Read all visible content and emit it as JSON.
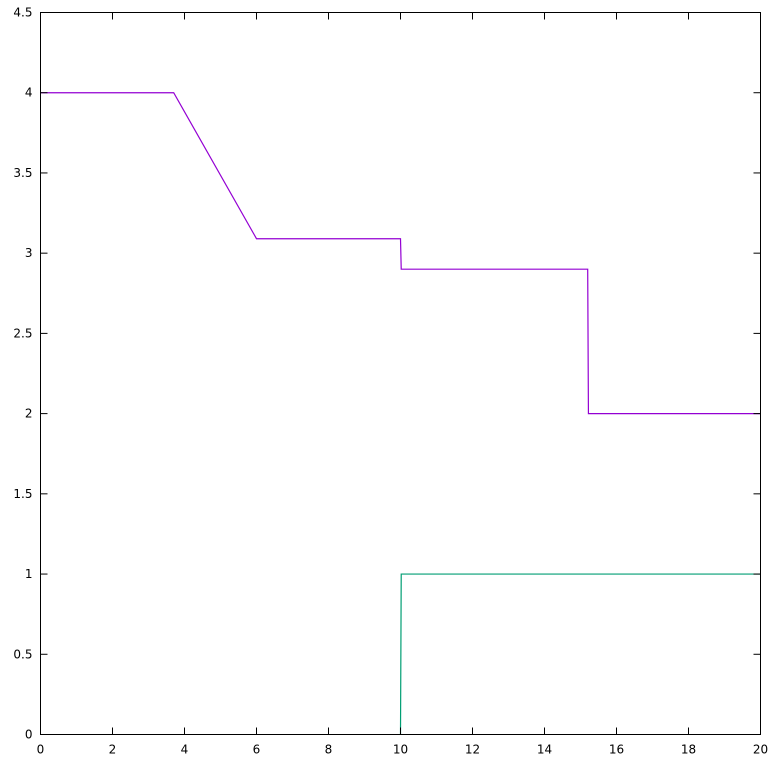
{
  "chart_data": {
    "type": "line",
    "title": "",
    "xlabel": "",
    "ylabel": "",
    "xlim": [
      0,
      20
    ],
    "ylim": [
      0,
      4.5
    ],
    "grid": false,
    "x_ticks": [
      {
        "value": 0,
        "label": "0"
      },
      {
        "value": 2,
        "label": "2"
      },
      {
        "value": 4,
        "label": "4"
      },
      {
        "value": 6,
        "label": "6"
      },
      {
        "value": 8,
        "label": "8"
      },
      {
        "value": 10,
        "label": "10"
      },
      {
        "value": 12,
        "label": "12"
      },
      {
        "value": 14,
        "label": "14"
      },
      {
        "value": 16,
        "label": "16"
      },
      {
        "value": 18,
        "label": "18"
      },
      {
        "value": 20,
        "label": "20"
      }
    ],
    "y_ticks": [
      {
        "value": 0,
        "label": "0"
      },
      {
        "value": 0.5,
        "label": "0.5"
      },
      {
        "value": 1,
        "label": "1"
      },
      {
        "value": 1.5,
        "label": "1.5"
      },
      {
        "value": 2,
        "label": "2"
      },
      {
        "value": 2.5,
        "label": "2.5"
      },
      {
        "value": 3,
        "label": "3"
      },
      {
        "value": 3.5,
        "label": "3.5"
      },
      {
        "value": 4,
        "label": "4"
      },
      {
        "value": 4.5,
        "label": "4.5"
      }
    ],
    "series": [
      {
        "color": "#9400d3",
        "points": [
          [
            0,
            4.0
          ],
          [
            3.7,
            4.0
          ],
          [
            6.0,
            3.09
          ],
          [
            10.0,
            3.09
          ],
          [
            10.02,
            2.9
          ],
          [
            15.2,
            2.9
          ],
          [
            15.22,
            2.0
          ],
          [
            20.0,
            2.0
          ]
        ]
      },
      {
        "color": "#009e73",
        "points": [
          [
            10.0,
            0.0
          ],
          [
            10.02,
            1.0
          ],
          [
            20.0,
            1.0
          ]
        ]
      }
    ]
  }
}
